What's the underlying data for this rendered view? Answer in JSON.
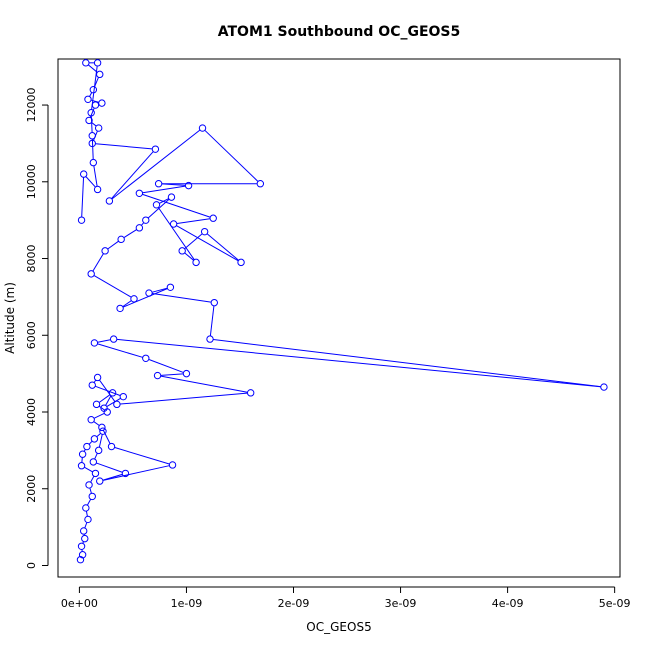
{
  "chart_data": {
    "type": "scatter",
    "title": "ATOM1 Southbound OC_GEOS5",
    "xlabel": "OC_GEOS5",
    "ylabel": "Altitude (m)",
    "xlim": [
      -2e-10,
      5.05e-09
    ],
    "ylim": [
      -300,
      13200
    ],
    "x_ticks": [
      {
        "value": 0,
        "label": "0e+00"
      },
      {
        "value": 1e-09,
        "label": "1e-09"
      },
      {
        "value": 2e-09,
        "label": "2e-09"
      },
      {
        "value": 3e-09,
        "label": "3e-09"
      },
      {
        "value": 4e-09,
        "label": "4e-09"
      },
      {
        "value": 5e-09,
        "label": "5e-09"
      }
    ],
    "y_ticks": [
      {
        "value": 0,
        "label": "0"
      },
      {
        "value": 2000,
        "label": "2000"
      },
      {
        "value": 4000,
        "label": "4000"
      },
      {
        "value": 6000,
        "label": "6000"
      },
      {
        "value": 8000,
        "label": "8000"
      },
      {
        "value": 10000,
        "label": "10000"
      },
      {
        "value": 12000,
        "label": "12000"
      }
    ],
    "style": {
      "color": "#0000ff",
      "marker": "open-circle",
      "connected": true
    },
    "grid": false,
    "legend": "none",
    "series": [
      {
        "x": [
          1e-11,
          3e-11,
          2e-11,
          5e-11,
          4e-11,
          8e-11,
          6e-11,
          1.2e-10,
          9e-11,
          1.5e-10,
          2e-11,
          3e-11,
          7e-11,
          1.4e-10,
          2.2e-10,
          1.8e-10,
          1.3e-10,
          4.3e-10,
          1.9e-10,
          8.7e-10,
          3e-10,
          2.1e-10,
          1.1e-10,
          2.6e-10,
          1.6e-10,
          3.1e-10,
          2.3e-10,
          4.1e-10,
          1.2e-10,
          1.7e-10,
          3.5e-10,
          1.6e-09,
          7.3e-10,
          1e-09,
          6.2e-10,
          1.4e-10,
          3.2e-10,
          4.9e-09,
          1.22e-09,
          1.26e-09,
          6.5e-10,
          8.5e-10,
          3.8e-10,
          5.1e-10,
          1.1e-10,
          2.4e-10,
          3.9e-10,
          5.6e-10,
          6.2e-10,
          8.6e-10,
          7.2e-10,
          1.09e-09,
          9.6e-10,
          1.17e-09,
          1.51e-09,
          8.8e-10,
          1.25e-09,
          5.6e-10,
          1.02e-09,
          7.4e-10,
          1.69e-09,
          1.15e-09,
          2.8e-10,
          7.1e-10,
          1.2e-10,
          1.8e-10,
          9e-11,
          1.5e-10,
          2.1e-10,
          8e-11,
          1.3e-10,
          1.9e-10,
          6e-11,
          1.7e-10,
          1.1e-10,
          1.2e-10,
          1.3e-10,
          1.7e-10,
          4e-11,
          2e-11
        ],
        "y": [
          150,
          280,
          500,
          700,
          900,
          1200,
          1500,
          1800,
          2100,
          2400,
          2600,
          2900,
          3100,
          3300,
          3500,
          3000,
          2700,
          2400,
          2200,
          2620,
          3100,
          3600,
          3800,
          4000,
          4200,
          4500,
          4100,
          4400,
          4700,
          4900,
          4200,
          4500,
          4950,
          5000,
          5400,
          5800,
          5900,
          4650,
          5900,
          6850,
          7100,
          7250,
          6700,
          6950,
          7600,
          8200,
          8500,
          8800,
          9000,
          9600,
          9400,
          7900,
          8200,
          8700,
          7900,
          8900,
          9050,
          9700,
          9900,
          9950,
          9950,
          11400,
          9500,
          10850,
          11000,
          11400,
          11600,
          12000,
          12050,
          12150,
          12400,
          12800,
          13100,
          13100,
          11800,
          11200,
          10500,
          9800,
          10200,
          9000
        ]
      }
    ]
  }
}
